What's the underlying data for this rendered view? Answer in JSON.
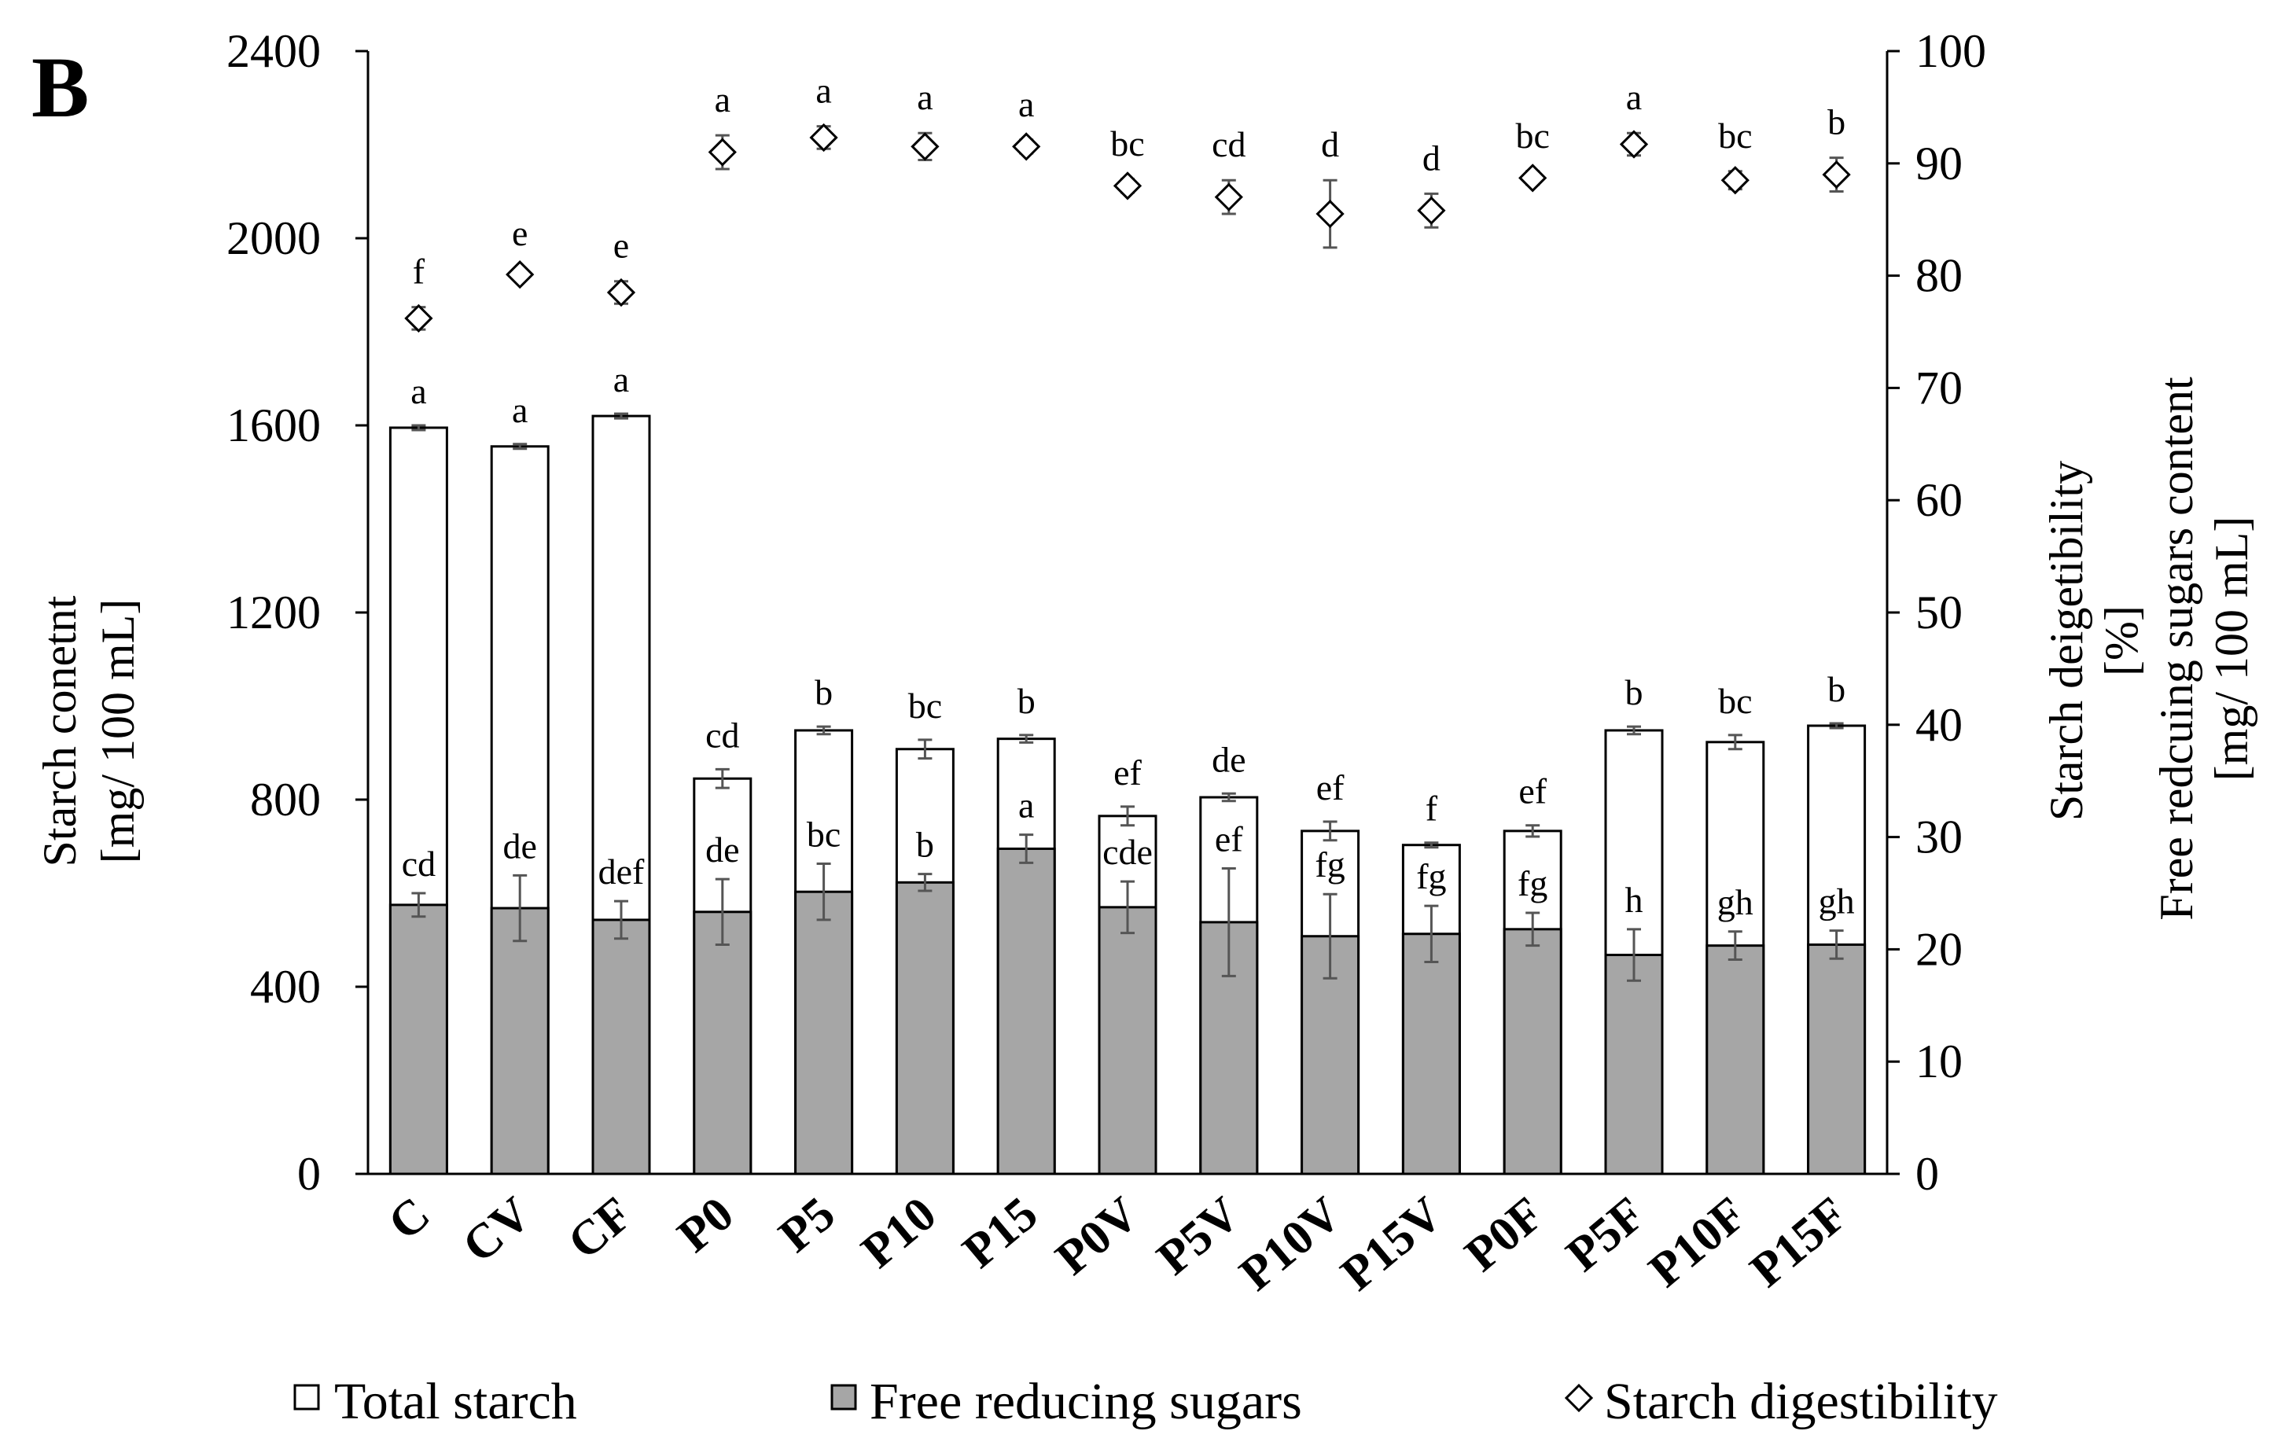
{
  "panel_label": "B",
  "chart_data": {
    "type": "bar",
    "stacked": true,
    "categories": [
      "C",
      "CV",
      "CF",
      "P0",
      "P5",
      "P10",
      "P15",
      "P0V",
      "P5V",
      "P10V",
      "P15V",
      "P0F",
      "P5F",
      "P10F",
      "P15F"
    ],
    "series": [
      {
        "name": "Total starch",
        "axis": "left",
        "color": "#ffffff",
        "values": [
          1595,
          1555,
          1620,
          845,
          948,
          908,
          930,
          765,
          805,
          733,
          703,
          733,
          948,
          923,
          958
        ],
        "errors": [
          5,
          5,
          5,
          20,
          8,
          20,
          8,
          20,
          8,
          20,
          5,
          12,
          8,
          15,
          5
        ],
        "labels": [
          "a",
          "a",
          "a",
          "cd",
          "b",
          "bc",
          "b",
          "ef",
          "de",
          "ef",
          "f",
          "ef",
          "b",
          "bc",
          "b"
        ]
      },
      {
        "name": "Free reducing sugars",
        "axis": "left",
        "color": "#a6a6a6",
        "values": [
          575,
          568,
          543,
          560,
          603,
          623,
          695,
          570,
          538,
          508,
          513,
          523,
          468,
          488,
          490
        ],
        "errors": [
          25,
          70,
          40,
          70,
          60,
          18,
          30,
          55,
          115,
          90,
          60,
          35,
          55,
          30,
          30
        ],
        "labels": [
          "cd",
          "de",
          "def",
          "de",
          "bc",
          "b",
          "a",
          "cde",
          "ef",
          "fg",
          "fg",
          "fg",
          "h",
          "gh",
          "gh"
        ]
      },
      {
        "name": "Starch digestibility",
        "axis": "right",
        "type": "scatter",
        "marker": "diamond",
        "values": [
          76.2,
          80.1,
          78.5,
          91.0,
          92.3,
          91.5,
          91.5,
          88.0,
          87.0,
          85.5,
          85.8,
          88.7,
          91.7,
          88.5,
          89.0
        ],
        "errors": [
          1.0,
          0.5,
          1.0,
          1.5,
          1.0,
          1.2,
          0.6,
          0.6,
          1.5,
          3.0,
          1.5,
          0.6,
          1.0,
          0.8,
          1.5
        ],
        "labels": [
          "f",
          "e",
          "e",
          "a",
          "a",
          "a",
          "a",
          "bc",
          "cd",
          "d",
          "d",
          "bc",
          "a",
          "bc",
          "b"
        ]
      }
    ],
    "left_axis": {
      "label_line1": "Starch conetnt",
      "label_line2": "[mg/ 100 mL]",
      "ylim": [
        0,
        2400
      ],
      "ticks": [
        0,
        400,
        800,
        1200,
        1600,
        2000,
        2400
      ]
    },
    "right_axis": {
      "label_line1": "Starch deigetibility",
      "label_line2": "[%]",
      "label2_line1": "Free redcuing sugars content",
      "label2_line2": "[mg/ 100 mL]",
      "ylim": [
        0,
        100
      ],
      "ticks": [
        0,
        10,
        20,
        30,
        40,
        50,
        60,
        70,
        80,
        90,
        100
      ]
    },
    "legend": {
      "position": "bottom",
      "items": [
        "Total starch",
        "Free reducing sugars",
        "Starch digestibility"
      ]
    }
  }
}
